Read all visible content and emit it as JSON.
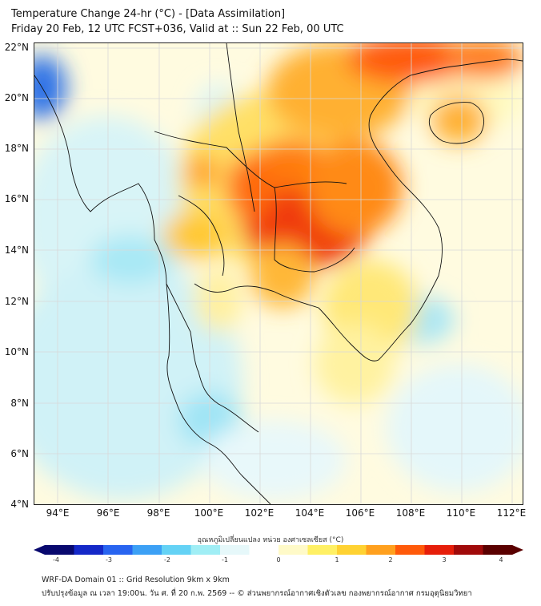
{
  "title_line1": "Temperature Change 24-hr (°C) - [Data Assimilation]",
  "title_line2": "Friday 20 Feb, 12 UTC FCST+036, Valid at :: Sun 22 Feb, 00 UTC",
  "lat_labels": [
    "22°N",
    "20°N",
    "18°N",
    "16°N",
    "14°N",
    "12°N",
    "10°N",
    "8°N",
    "6°N",
    "4°N"
  ],
  "lon_labels": [
    "94°E",
    "96°E",
    "98°E",
    "100°E",
    "102°E",
    "104°E",
    "106°E",
    "108°E",
    "110°E",
    "112°E"
  ],
  "colorbar": {
    "label": "อุณหภูมิเปลี่ยนแปลง หน่วย องศาเซลเซียส (°C)",
    "ticks": [
      "-4",
      "-3",
      "-2",
      "-1",
      "0",
      "1",
      "2",
      "3",
      "4"
    ],
    "range": [
      -4,
      4
    ],
    "colors": [
      "#08086e",
      "#1428c8",
      "#2864f0",
      "#3ca0f5",
      "#64d2f5",
      "#a0eef5",
      "#e6f8fa",
      "#ffffff",
      "#fffac8",
      "#fff064",
      "#ffd232",
      "#ffa01e",
      "#ff5a0a",
      "#e61e0a",
      "#a00a0a",
      "#5a0000"
    ]
  },
  "footer_line1": "WRF-DA Domain 01 :: Grid Resolution 9km x 9km",
  "footer_line2": "ปรับปรุงข้อมูล ณ เวลา 19:00น. วัน ศ. ที่ 20 ก.พ. 2569 -- © ส่วนพยากรณ์อากาศเชิงตัวเลข กองพยากรณ์อากาศ กรมอุตุนิยมวิทยา"
}
